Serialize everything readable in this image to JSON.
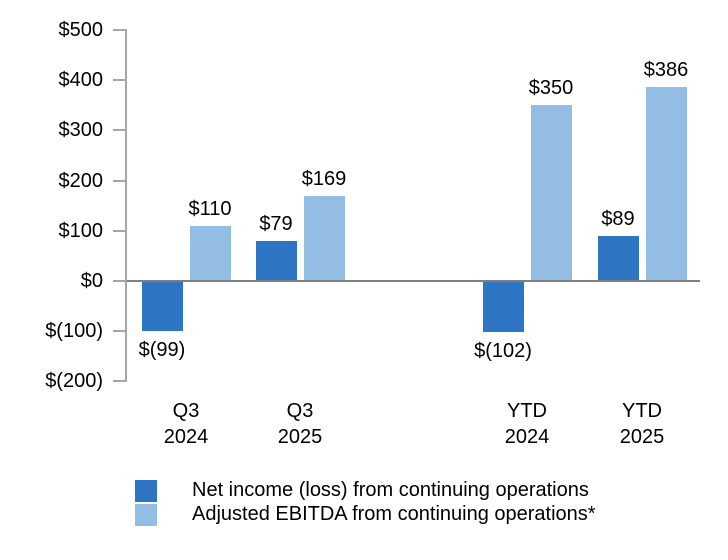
{
  "chart_data": {
    "type": "bar",
    "title": "",
    "xlabel": "",
    "ylabel": "",
    "categories": [
      "Q3\n2024",
      "Q3\n2025",
      "YTD\n2024",
      "YTD\n2025"
    ],
    "series": [
      {
        "key": "net-income",
        "name": "Net income (loss) from continuing operations",
        "color": "#2E75C3",
        "values": [
          -99,
          79,
          -102,
          89
        ],
        "labels": [
          "$(99)",
          "$79",
          "$(102)",
          "$89"
        ]
      },
      {
        "key": "adjusted-ebitda",
        "name": "Adjusted EBITDA from continuing operations*",
        "color": "#94BDE3",
        "values": [
          110,
          169,
          350,
          386
        ],
        "labels": [
          "$110",
          "$169",
          "$350",
          "$386"
        ]
      }
    ],
    "y_axis": {
      "ticks": [
        500,
        400,
        300,
        200,
        100,
        0,
        -100,
        -200
      ],
      "tick_labels": [
        "$500",
        "$400",
        "$300",
        "$200",
        "$100",
        "$0",
        "$(100)",
        "$(200)"
      ],
      "ylim": [
        -200,
        500
      ]
    },
    "legend_position": "bottom",
    "grid": false,
    "colors": {
      "axis_line": "#a6a6a6",
      "zero_line": "#7f7f7f",
      "text": "#000000",
      "background": "#ffffff"
    }
  }
}
